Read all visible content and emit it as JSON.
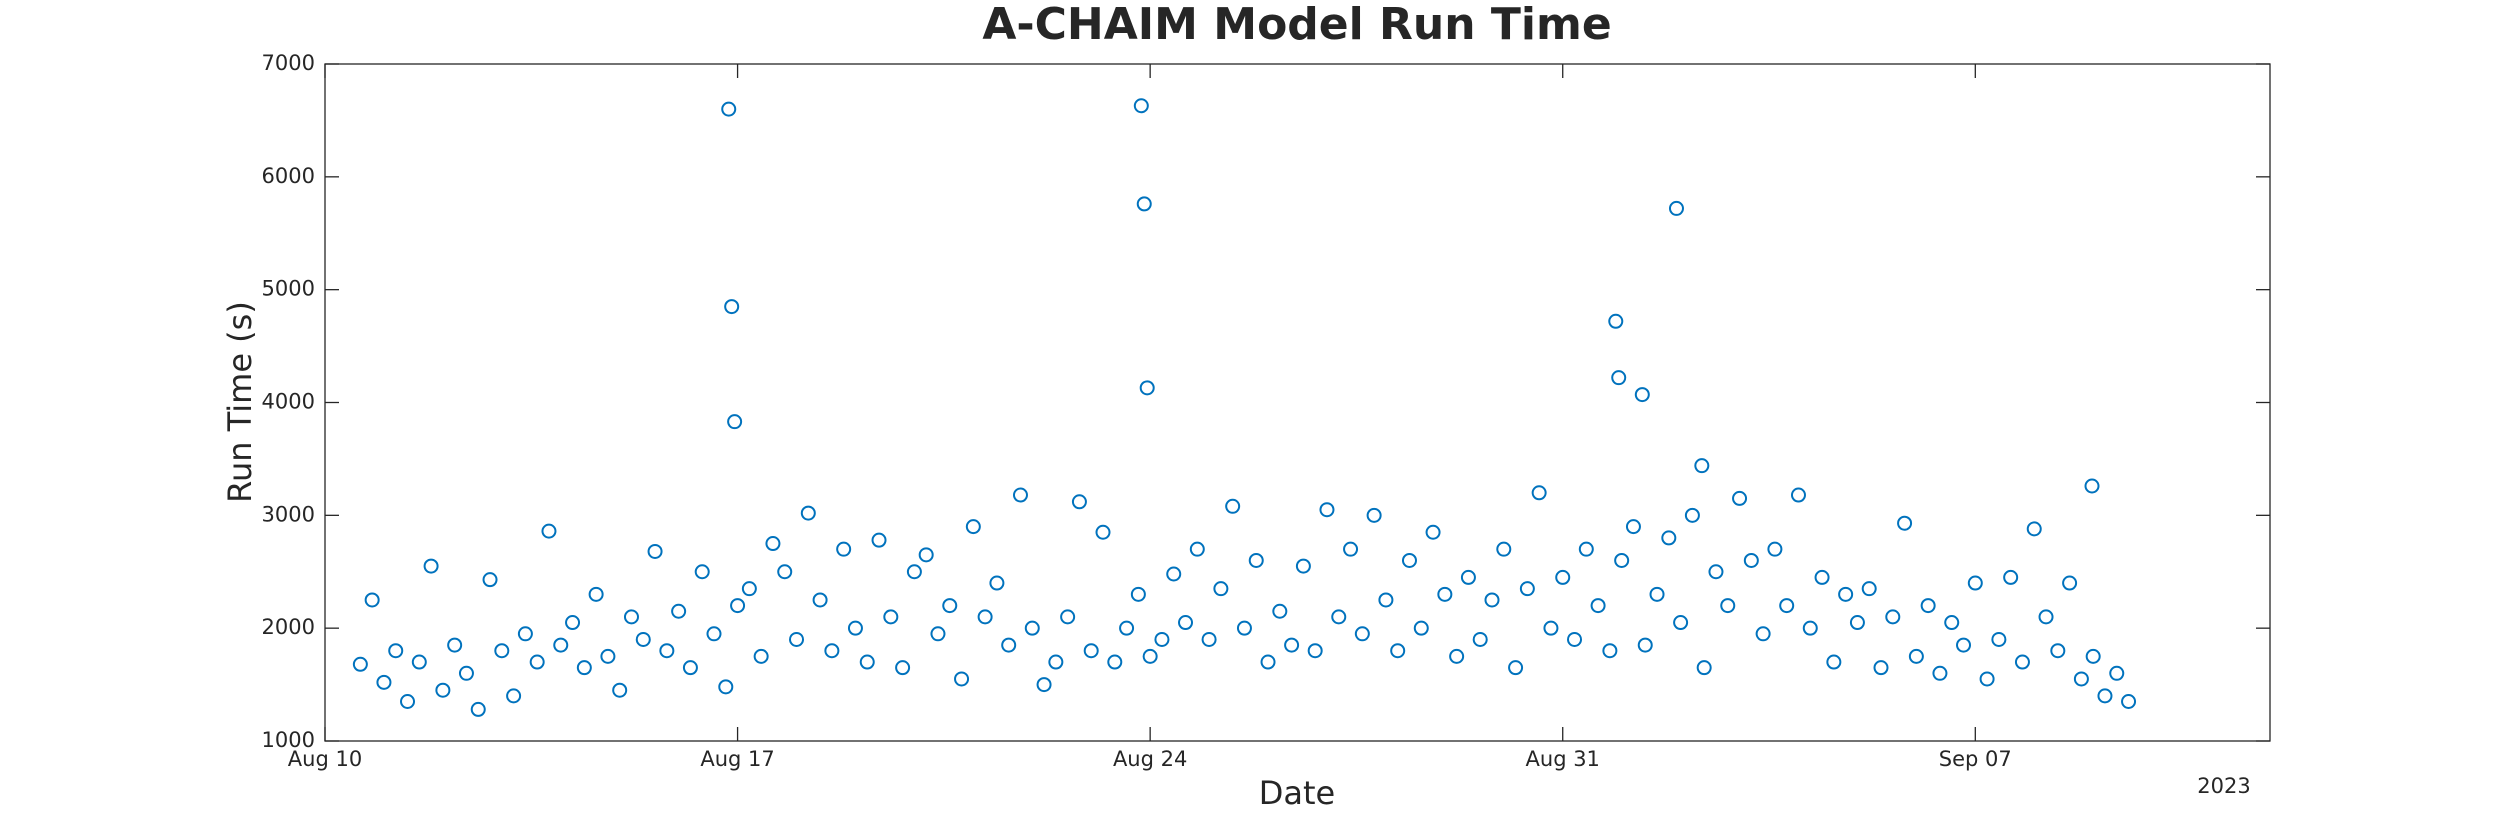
{
  "chart_data": {
    "type": "scatter",
    "title": "A-CHAIM Model Run Time",
    "xlabel": "Date",
    "ylabel": "Run Time (s)",
    "x_year_label": "2023",
    "color": "#0072bd",
    "xlim": [
      0,
      33
    ],
    "xticks": [
      {
        "value": 0,
        "label": "Aug 10"
      },
      {
        "value": 7,
        "label": "Aug 17"
      },
      {
        "value": 14,
        "label": "Aug 24"
      },
      {
        "value": 21,
        "label": "Aug 31"
      },
      {
        "value": 28,
        "label": "Sep 07"
      }
    ],
    "ylim": [
      1000,
      7000
    ],
    "yticks": [
      1000,
      2000,
      3000,
      4000,
      5000,
      6000,
      7000
    ],
    "x": [
      0.6,
      0.8,
      1,
      1.2,
      1.4,
      1.6,
      1.8,
      2,
      2.2,
      2.4,
      2.6,
      2.8,
      3,
      3.2,
      3.4,
      3.6,
      3.8,
      4,
      4.2,
      4.4,
      4.6,
      4.8,
      5,
      5.2,
      5.4,
      5.6,
      5.8,
      6,
      6.2,
      6.4,
      6.6,
      6.8,
      7,
      7.2,
      7.4,
      7.6,
      7.8,
      8,
      8.2,
      8.4,
      8.6,
      8.8,
      9,
      9.2,
      9.4,
      9.6,
      9.8,
      10,
      10.2,
      10.4,
      10.6,
      10.8,
      11,
      11.2,
      11.4,
      11.6,
      11.8,
      12,
      12.2,
      12.4,
      12.6,
      12.8,
      13,
      13.2,
      13.4,
      13.6,
      13.8,
      14,
      14.2,
      14.4,
      14.6,
      14.8,
      15,
      15.2,
      15.4,
      15.6,
      15.8,
      16,
      16.2,
      16.4,
      16.6,
      16.8,
      17,
      17.2,
      17.4,
      17.6,
      17.8,
      18,
      18.2,
      18.4,
      18.6,
      18.8,
      19,
      19.2,
      19.4,
      19.6,
      19.8,
      20,
      20.2,
      20.4,
      20.6,
      20.8,
      21,
      21.2,
      21.4,
      21.6,
      21.8,
      22,
      22.2,
      22.4,
      22.6,
      22.8,
      23,
      23.2,
      23.4,
      23.6,
      23.8,
      24,
      24.2,
      24.4,
      24.6,
      24.8,
      25,
      25.2,
      25.4,
      25.6,
      25.8,
      26,
      26.2,
      26.4,
      26.6,
      26.8,
      27,
      27.2,
      27.4,
      27.6,
      27.8,
      28,
      28.2,
      28.4,
      28.6,
      28.8,
      29,
      29.2,
      29.4,
      29.6,
      29.8,
      30,
      30.2,
      30.4,
      30.6,
      6.85,
      6.9,
      6.95,
      13.85,
      13.9,
      13.95,
      21.9,
      21.95,
      22.35,
      22.93,
      23.36,
      29.98
    ],
    "values": [
      1680,
      2250,
      1520,
      1800,
      1350,
      1700,
      2550,
      1450,
      1850,
      1600,
      1280,
      2430,
      1800,
      1400,
      1950,
      1700,
      2860,
      1850,
      2050,
      1650,
      2300,
      1750,
      1450,
      2100,
      1900,
      2680,
      1800,
      2150,
      1650,
      2500,
      1950,
      1480,
      2200,
      2350,
      1750,
      2750,
      2500,
      1900,
      3020,
      2250,
      1800,
      2700,
      2000,
      1700,
      2780,
      2100,
      1650,
      2500,
      2650,
      1950,
      2200,
      1550,
      2900,
      2100,
      2400,
      1850,
      3180,
      2000,
      1500,
      1700,
      2100,
      3120,
      1800,
      2850,
      1700,
      2000,
      2300,
      1750,
      1900,
      2480,
      2050,
      2700,
      1900,
      2350,
      3080,
      2000,
      2600,
      1700,
      2150,
      1850,
      2550,
      1800,
      3050,
      2100,
      2700,
      1950,
      3000,
      2250,
      1800,
      2600,
      2000,
      2850,
      2300,
      1750,
      2450,
      1900,
      2250,
      2700,
      1650,
      2350,
      3200,
      2000,
      2450,
      1900,
      2700,
      2200,
      1800,
      2600,
      2900,
      1850,
      2300,
      2800,
      2050,
      3000,
      1650,
      2500,
      2200,
      3150,
      2600,
      1950,
      2700,
      2200,
      3180,
      2000,
      2450,
      1700,
      2300,
      2050,
      2350,
      1650,
      2100,
      2930,
      1750,
      2200,
      1600,
      2050,
      1850,
      2400,
      1550,
      1900,
      2450,
      1700,
      2880,
      2100,
      1800,
      2400,
      1550,
      1750,
      1400,
      1600,
      1350,
      6600,
      4850,
      3830,
      6630,
      5760,
      4130,
      4720,
      4220,
      4070,
      5720,
      3440,
      3260
    ]
  }
}
